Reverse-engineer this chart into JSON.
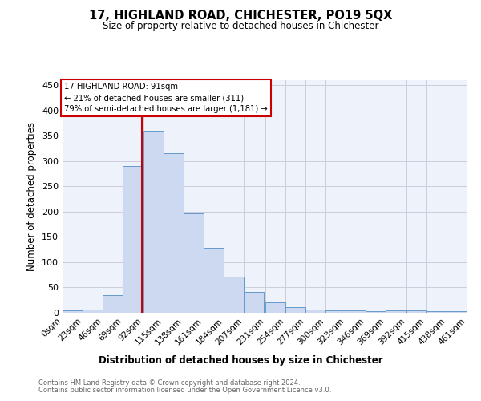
{
  "title": "17, HIGHLAND ROAD, CHICHESTER, PO19 5QX",
  "subtitle": "Size of property relative to detached houses in Chichester",
  "xlabel": "Distribution of detached houses by size in Chichester",
  "ylabel": "Number of detached properties",
  "bin_edges": [
    0,
    23,
    46,
    69,
    92,
    115,
    138,
    161,
    184,
    207,
    231,
    254,
    277,
    300,
    323,
    346,
    369,
    392,
    415,
    438,
    461
  ],
  "bin_labels": [
    "0sqm",
    "23sqm",
    "46sqm",
    "69sqm",
    "92sqm",
    "115sqm",
    "138sqm",
    "161sqm",
    "184sqm",
    "207sqm",
    "231sqm",
    "254sqm",
    "277sqm",
    "300sqm",
    "323sqm",
    "346sqm",
    "369sqm",
    "392sqm",
    "415sqm",
    "438sqm",
    "461sqm"
  ],
  "counts": [
    4,
    6,
    35,
    290,
    360,
    315,
    197,
    128,
    71,
    42,
    21,
    11,
    6,
    5,
    5,
    3,
    5,
    4,
    3,
    3
  ],
  "bar_facecolor": "#ccd9f0",
  "bar_edgecolor": "#6699cc",
  "property_line_x": 91,
  "annotation_title": "17 HIGHLAND ROAD: 91sqm",
  "annotation_line1": "← 21% of detached houses are smaller (311)",
  "annotation_line2": "79% of semi-detached houses are larger (1,181) →",
  "annotation_box_color": "#ffffff",
  "annotation_box_edgecolor": "#cc0000",
  "vline_color": "#cc0000",
  "grid_color": "#ccccdd",
  "background_color": "#eef2fb",
  "ylim": [
    0,
    460
  ],
  "yticks": [
    0,
    50,
    100,
    150,
    200,
    250,
    300,
    350,
    400,
    450
  ],
  "footer1": "Contains HM Land Registry data © Crown copyright and database right 2024.",
  "footer2": "Contains public sector information licensed under the Open Government Licence v3.0."
}
